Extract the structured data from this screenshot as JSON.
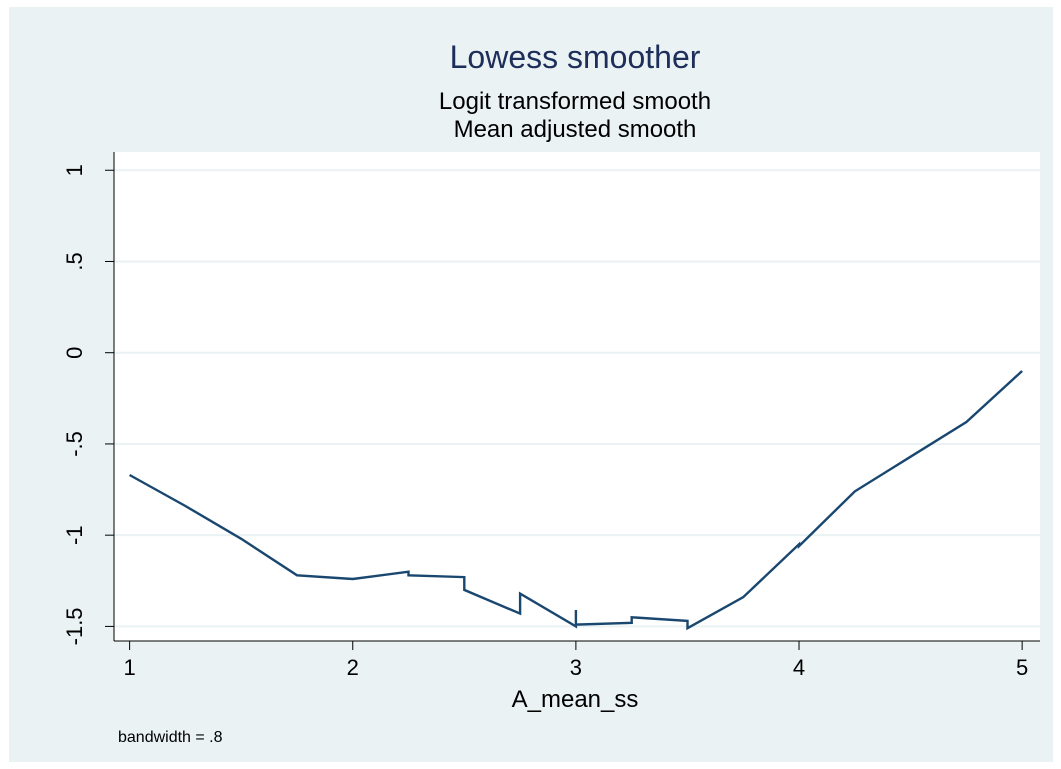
{
  "chart_data": {
    "type": "line",
    "title": "Lowess smoother",
    "subtitle_lines": [
      "Logit transformed smooth",
      "Mean adjusted smooth"
    ],
    "xlabel": "A_mean_ss",
    "ylabel": "",
    "note": "bandwidth = .8",
    "xlim": [
      0.93,
      5.08
    ],
    "ylim": [
      -1.58,
      1.1
    ],
    "x_ticks": [
      1,
      2,
      3,
      4,
      5
    ],
    "x_tick_labels": [
      "1",
      "2",
      "3",
      "4",
      "5"
    ],
    "y_ticks": [
      1,
      0.5,
      0,
      -0.5,
      -1,
      -1.5
    ],
    "y_tick_labels": [
      "1",
      ".5",
      "0",
      "-.5",
      "-1",
      "-1.5"
    ],
    "grid": true,
    "legend": "none",
    "series": [
      {
        "points": [
          [
            1.0,
            -0.67
          ],
          [
            1.25,
            -0.84
          ],
          [
            1.5,
            -1.02
          ],
          [
            1.75,
            -1.22
          ],
          [
            2.0,
            -1.24
          ],
          [
            2.25,
            -1.2
          ],
          [
            2.25,
            -1.22
          ],
          [
            2.5,
            -1.23
          ],
          [
            2.5,
            -1.3
          ],
          [
            2.75,
            -1.43
          ],
          [
            2.75,
            -1.32
          ],
          [
            3.0,
            -1.5
          ],
          [
            3.0,
            -1.41
          ],
          [
            3.0,
            -1.49
          ],
          [
            3.25,
            -1.48
          ],
          [
            3.25,
            -1.45
          ],
          [
            3.5,
            -1.47
          ],
          [
            3.5,
            -1.51
          ],
          [
            3.75,
            -1.34
          ],
          [
            4.0,
            -1.05
          ],
          [
            4.0,
            -1.06
          ],
          [
            4.25,
            -0.76
          ],
          [
            4.5,
            -0.57
          ],
          [
            4.75,
            -0.38
          ],
          [
            5.0,
            -0.1
          ]
        ]
      }
    ]
  },
  "colors": {
    "background": "#eaf2f3",
    "plot_background": "#ffffff",
    "grid": "#eaf2f3",
    "line": "#1a476f",
    "title": "#1e2e5a",
    "text": "#000000"
  }
}
